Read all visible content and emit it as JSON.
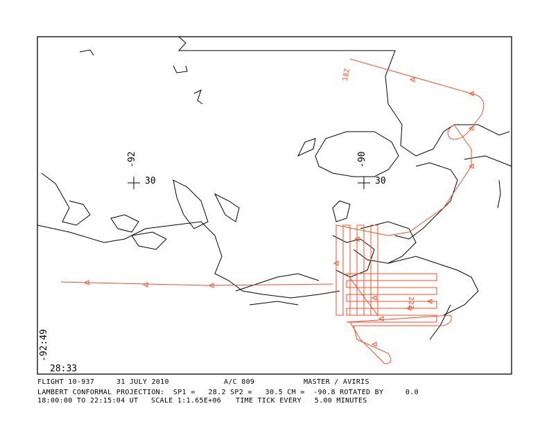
{
  "map": {
    "grid_marks": [
      {
        "lon_label": "-92",
        "lat_label": "30"
      },
      {
        "lon_label": "-90",
        "lat_label": "30"
      }
    ],
    "track_labels": {
      "start": "18Z",
      "end": "22Z"
    },
    "corner_lon": "-92:49",
    "corner_lat": "28:33",
    "colors": {
      "track": "#ff4a24",
      "coastline": "#000000",
      "frame": "#000000"
    }
  },
  "footer": {
    "flight": "FLIGHT 10-937",
    "date": "31 JULY 2010",
    "aircraft": "A/C 809",
    "instruments": "MASTER / AVIRIS",
    "projection": "LAMBERT CONFORMAL PROJECTION:  SP1 =   28.2 SP2 =   30.5 CM =  -90.8 ROTATED BY     0.0",
    "time_range": "18:00:00 TO 22:15:04 UT",
    "scale": "SCALE 1:1.65E+06",
    "time_tick": "TIME TICK EVERY   5.00 MINUTES"
  }
}
